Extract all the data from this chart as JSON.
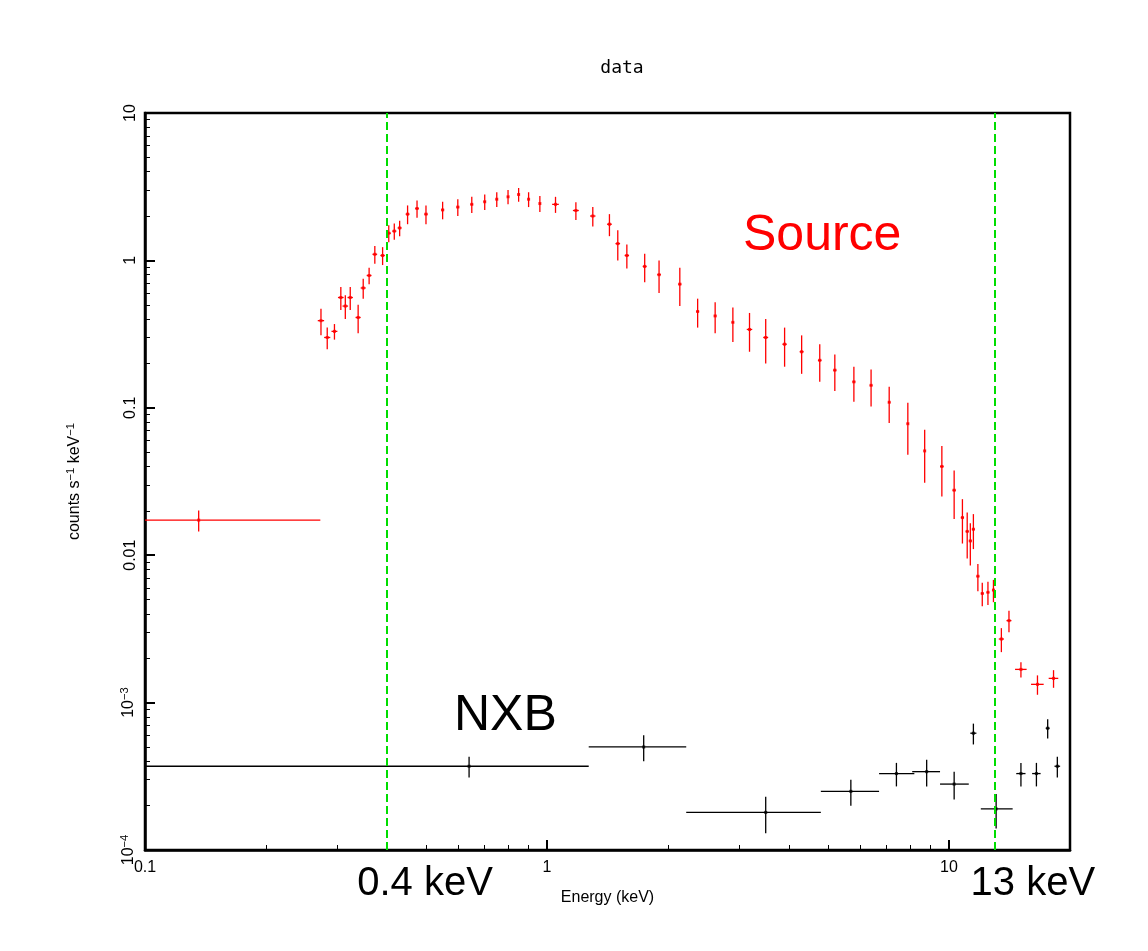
{
  "chart_data": {
    "type": "scatter",
    "title": "data",
    "xlabel": "Energy (keV)",
    "ylabel": "counts s$^{−1}$ keV$^{−1}$",
    "log": "xy",
    "xlim": [
      0.1,
      20
    ],
    "xticks": [
      0.1,
      1,
      10
    ],
    "ylim": [
      0.0001,
      10
    ],
    "yticks": [
      10,
      1,
      0.1,
      0.01,
      {
        "value": 0.001,
        "label": "10$^{−3}$"
      },
      {
        "value": 0.0001,
        "label": "10$^{−4}$"
      }
    ],
    "series": [
      {
        "color": "#ff0000",
        "x": [
          0.136,
          0.274,
          0.284,
          0.296,
          0.307,
          0.315,
          0.324,
          0.339,
          0.349,
          0.361,
          0.373,
          0.39,
          0.404,
          0.417,
          0.43,
          0.45,
          0.475,
          0.5,
          0.55,
          0.6,
          0.65,
          0.7,
          0.75,
          0.8,
          0.85,
          0.9,
          0.96,
          1.05,
          1.18,
          1.3,
          1.43,
          1.5,
          1.58,
          1.75,
          1.9,
          2.14,
          2.37,
          2.62,
          2.9,
          3.19,
          3.5,
          3.9,
          4.3,
          4.77,
          5.2,
          5.8,
          6.4,
          7.1,
          7.9,
          8.7,
          9.6,
          10.3,
          10.8,
          11.1,
          11.3,
          11.5,
          11.8,
          12.1,
          12.5,
          12.9,
          13.5,
          14.1,
          15.1,
          16.6,
          18.2
        ],
        "values": [
          0.0173,
          0.39,
          0.3,
          0.33,
          0.56,
          0.49,
          0.56,
          0.41,
          0.65,
          0.79,
          1.1,
          1.08,
          1.53,
          1.58,
          1.66,
          2.06,
          2.25,
          2.06,
          2.2,
          2.3,
          2.4,
          2.5,
          2.6,
          2.7,
          2.8,
          2.6,
          2.43,
          2.4,
          2.18,
          2.0,
          1.76,
          1.3,
          1.08,
          0.91,
          0.8,
          0.69,
          0.45,
          0.42,
          0.38,
          0.34,
          0.3,
          0.27,
          0.24,
          0.21,
          0.18,
          0.15,
          0.142,
          0.109,
          0.078,
          0.051,
          0.04,
          0.0276,
          0.018,
          0.0145,
          0.0125,
          0.015,
          0.0072,
          0.0055,
          0.0056,
          0.0058,
          0.0027,
          0.0036,
          0.00168,
          0.00133,
          0.00146
        ],
        "errors": [
          0.0028,
          0.08,
          0.05,
          0.04,
          0.1,
          0.09,
          0.1,
          0.09,
          0.1,
          0.1,
          0.15,
          0.15,
          0.2,
          0.2,
          0.2,
          0.3,
          0.3,
          0.3,
          0.3,
          0.3,
          0.3,
          0.3,
          0.3,
          0.3,
          0.3,
          0.3,
          0.3,
          0.3,
          0.3,
          0.3,
          0.3,
          0.3,
          0.2,
          0.2,
          0.2,
          0.2,
          0.1,
          0.1,
          0.1,
          0.1,
          0.1,
          0.08,
          0.07,
          0.06,
          0.05,
          0.04,
          0.04,
          0.03,
          0.03,
          0.02,
          0.015,
          0.01,
          0.006,
          0.005,
          0.004,
          0.004,
          0.0015,
          0.001,
          0.001,
          0.001,
          0.0005,
          0.0006,
          0.0002,
          0.0002,
          0.0002
        ],
        "xerrors": [
          [
            0.1,
            0.273
          ],
          0.005,
          0.005,
          0.005,
          0.005,
          0.005,
          0.005,
          0.005,
          0.005,
          0.005,
          0.005,
          0.005,
          0.005,
          0.005,
          0.005,
          0.005,
          0.005,
          0.005,
          0.005,
          0.005,
          0.005,
          0.005,
          0.005,
          0.005,
          0.005,
          0.005,
          0.005,
          0.02,
          0.02,
          0.02,
          0.02,
          0.02,
          0.02,
          0.02,
          0.02,
          0.02,
          0.02,
          0.02,
          0.02,
          0.05,
          0.05,
          0.05,
          0.05,
          0.05,
          0.05,
          0.05,
          0.05,
          0.05,
          0.05,
          0.05,
          0.1,
          0.1,
          0.1,
          0.1,
          0.1,
          0.1,
          0.1,
          0.1,
          0.1,
          0.1,
          0.2,
          0.2,
          0.5,
          0.6,
          0.5
        ]
      },
      {
        "color": "#000000",
        "x": [
          0.64,
          1.74,
          3.5,
          5.7,
          7.4,
          8.8,
          10.3,
          11.5,
          13.1,
          15.1,
          16.5,
          17.6,
          18.6
        ],
        "values": [
          0.00037,
          0.0005,
          0.00018,
          0.00025,
          0.00033,
          0.00034,
          0.00028,
          0.00062,
          0.00019,
          0.00033,
          0.00033,
          0.00067,
          0.00037
        ],
        "errors": [
          6e-05,
          0.0001,
          5e-05,
          5e-05,
          6e-05,
          7e-05,
          6e-05,
          0.0001,
          5e-05,
          6e-05,
          6e-05,
          0.0001,
          6e-05
        ],
        "xerrors": [
          [
            0.1,
            1.27
          ],
          [
            1.27,
            2.22
          ],
          [
            2.22,
            4.8
          ],
          [
            4.8,
            6.7
          ],
          [
            6.7,
            8.2
          ],
          [
            8.1,
            9.5
          ],
          [
            9.5,
            11.2
          ],
          0.2,
          [
            12.0,
            14.4
          ],
          0.4,
          0.4,
          0.2,
          0.3
        ]
      }
    ],
    "ref_lines": [
      {
        "axis": "x",
        "value": 0.4,
        "label": "0.4 keV",
        "color": "#00dd00",
        "line_style": "dashed"
      },
      {
        "axis": "x",
        "value": 13,
        "label": "13 keV",
        "color": "#00dd00",
        "line_style": "dashed"
      }
    ],
    "annotations": [
      "Source",
      "NXB"
    ]
  }
}
